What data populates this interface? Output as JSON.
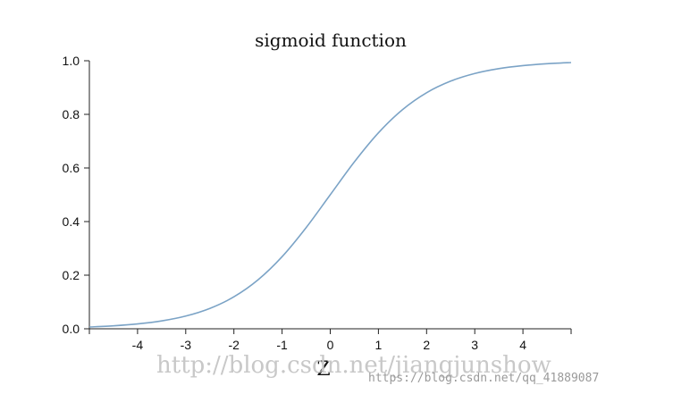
{
  "chart_data": {
    "type": "line",
    "title": "sigmoid function",
    "xlabel": "Z",
    "ylabel": "",
    "xlim": [
      -5,
      5
    ],
    "ylim": [
      0,
      1
    ],
    "xticks": [
      -4,
      -3,
      -2,
      -1,
      0,
      1,
      2,
      3,
      4
    ],
    "xtick_labels": [
      "-4",
      "-3",
      "-2",
      "-1",
      "0",
      "1",
      "2",
      "3",
      "4"
    ],
    "yticks": [
      0,
      0.2,
      0.4,
      0.6,
      0.8,
      1.0
    ],
    "ytick_labels": [
      "0.0",
      "0.2",
      "0.4",
      "0.6",
      "0.8",
      "1.0"
    ],
    "grid": false,
    "legend": "none",
    "series": [
      {
        "color": "#7ba3c6",
        "x": [
          -5,
          -4.5,
          -4,
          -3.5,
          -3,
          -2.5,
          -2,
          -1.5,
          -1,
          -0.5,
          0,
          0.5,
          1,
          1.5,
          2,
          2.5,
          3,
          3.5,
          4,
          4.5,
          5
        ],
        "y": [
          0.0067,
          0.011,
          0.018,
          0.0293,
          0.0474,
          0.0759,
          0.1192,
          0.1824,
          0.2689,
          0.3775,
          0.5,
          0.6225,
          0.7311,
          0.8176,
          0.8808,
          0.9241,
          0.9526,
          0.9707,
          0.982,
          0.989,
          0.9933
        ]
      }
    ]
  },
  "watermark": {
    "main": "http://blog.csdn.net/jiangjunshow",
    "secondary": "https://blog.csdn.net/qq_41889087"
  }
}
